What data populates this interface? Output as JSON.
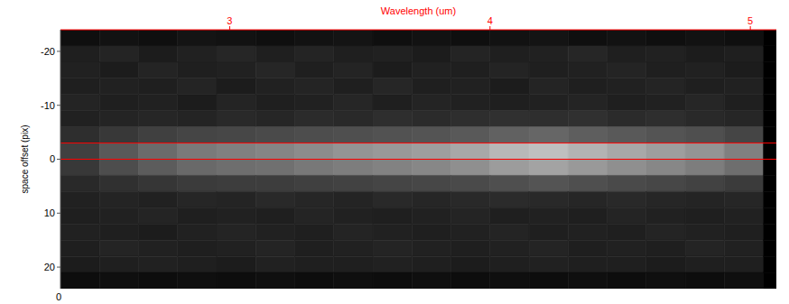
{
  "chart_data": {
    "type": "heatmap",
    "x_axis_label": "Wavelength (um)",
    "y_axis_label": "space offset (pix)",
    "xlim": [
      2.35,
      5.1
    ],
    "xticks": [
      3,
      4,
      5
    ],
    "ylim": [
      -24,
      24
    ],
    "yticks": [
      -20,
      -10,
      0,
      10,
      20
    ],
    "color": "#ff0000",
    "annotations": [
      "0"
    ],
    "hlines": [
      -3,
      0
    ],
    "zlim": [
      0,
      100
    ],
    "x_edges": [
      2.35,
      2.5,
      2.65,
      2.8,
      2.95,
      3.1,
      3.25,
      3.4,
      3.55,
      3.7,
      3.85,
      4.0,
      4.15,
      4.3,
      4.45,
      4.6,
      4.75,
      4.9,
      5.05,
      5.1
    ],
    "y_edges": [
      -24,
      -21,
      -18,
      -15,
      -12,
      -9,
      -6,
      -3,
      0,
      3,
      6,
      9,
      12,
      15,
      18,
      21,
      24
    ],
    "cells": [
      [
        6,
        7,
        6,
        8,
        7,
        6,
        7,
        8,
        6,
        7,
        6,
        7,
        8,
        6,
        7,
        6,
        7,
        6,
        0
      ],
      [
        12,
        14,
        11,
        13,
        15,
        12,
        14,
        12,
        13,
        11,
        14,
        12,
        13,
        15,
        12,
        13,
        11,
        12,
        0
      ],
      [
        13,
        11,
        14,
        12,
        13,
        15,
        12,
        14,
        11,
        13,
        12,
        14,
        12,
        13,
        14,
        12,
        13,
        11,
        0
      ],
      [
        12,
        13,
        12,
        14,
        11,
        13,
        14,
        12,
        15,
        12,
        13,
        11,
        14,
        12,
        13,
        14,
        12,
        13,
        0
      ],
      [
        14,
        12,
        13,
        11,
        14,
        12,
        13,
        15,
        12,
        14,
        13,
        12,
        13,
        14,
        12,
        13,
        15,
        12,
        0
      ],
      [
        13,
        14,
        15,
        14,
        16,
        15,
        17,
        16,
        18,
        17,
        18,
        19,
        18,
        19,
        17,
        18,
        16,
        15,
        0
      ],
      [
        18,
        22,
        25,
        27,
        28,
        29,
        30,
        31,
        32,
        33,
        35,
        38,
        40,
        37,
        35,
        33,
        31,
        27,
        0
      ],
      [
        25,
        35,
        42,
        48,
        50,
        52,
        55,
        58,
        60,
        62,
        66,
        72,
        75,
        70,
        66,
        62,
        58,
        50,
        0
      ],
      [
        22,
        30,
        36,
        41,
        43,
        44,
        47,
        49,
        51,
        53,
        56,
        61,
        64,
        60,
        56,
        53,
        49,
        43,
        0
      ],
      [
        16,
        19,
        21,
        23,
        24,
        24,
        25,
        26,
        27,
        28,
        29,
        31,
        33,
        31,
        29,
        28,
        26,
        23,
        0
      ],
      [
        13,
        14,
        13,
        15,
        14,
        16,
        15,
        14,
        16,
        15,
        16,
        17,
        16,
        15,
        16,
        15,
        14,
        15,
        0
      ],
      [
        12,
        13,
        14,
        12,
        13,
        12,
        14,
        13,
        12,
        13,
        14,
        12,
        13,
        12,
        14,
        13,
        12,
        13,
        0
      ],
      [
        13,
        12,
        11,
        13,
        14,
        13,
        12,
        14,
        13,
        12,
        13,
        14,
        12,
        13,
        12,
        14,
        13,
        12,
        0
      ],
      [
        12,
        14,
        13,
        12,
        13,
        14,
        12,
        13,
        14,
        13,
        12,
        13,
        14,
        12,
        13,
        12,
        14,
        13,
        0
      ],
      [
        11,
        12,
        13,
        12,
        11,
        13,
        12,
        12,
        13,
        12,
        11,
        12,
        13,
        12,
        12,
        11,
        12,
        12,
        0
      ],
      [
        5,
        6,
        5,
        6,
        5,
        6,
        5,
        6,
        5,
        6,
        5,
        6,
        5,
        6,
        5,
        6,
        5,
        6,
        0
      ]
    ]
  }
}
